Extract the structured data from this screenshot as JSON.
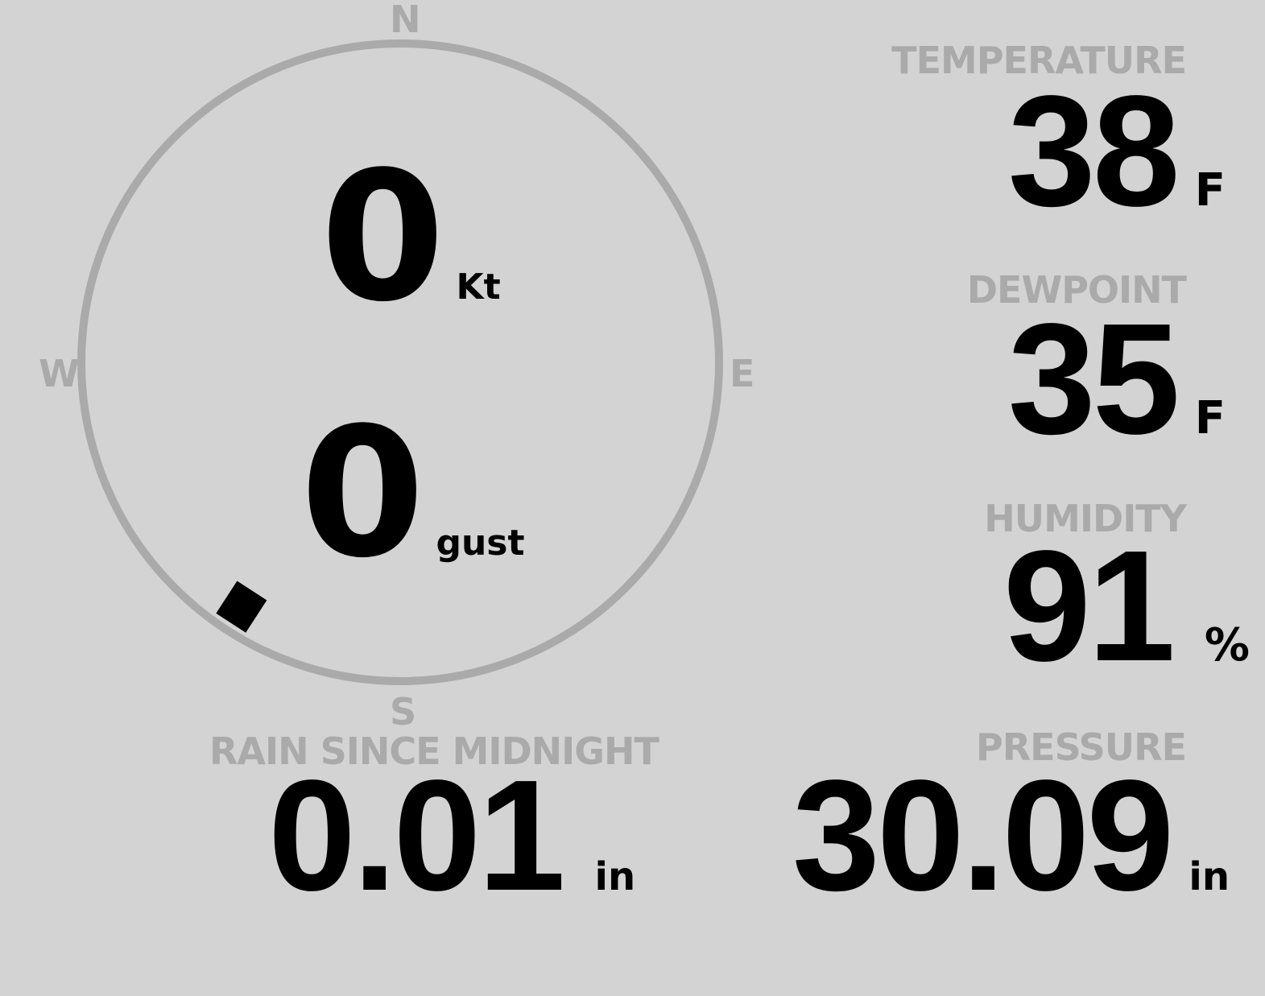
{
  "compass": {
    "north": "N",
    "south": "S",
    "east": "E",
    "west": "W",
    "direction_deg": 213,
    "ring_color": "#aaaaaa",
    "marker_color": "#000000"
  },
  "wind": {
    "speed": "0",
    "speed_unit": "Kt",
    "gust": "0",
    "gust_unit": "gust"
  },
  "temperature": {
    "label": "TEMPERATURE",
    "value": "38",
    "unit": "F"
  },
  "dewpoint": {
    "label": "DEWPOINT",
    "value": "35",
    "unit": "F"
  },
  "humidity": {
    "label": "HUMIDITY",
    "value": "91",
    "unit": "%"
  },
  "rain": {
    "label": "RAIN SINCE MIDNIGHT",
    "value": "0.01",
    "unit": "in"
  },
  "pressure": {
    "label": "PRESSURE",
    "value": "30.09",
    "unit": "in"
  },
  "colors": {
    "background": "#d3d3d3",
    "label": "#aaaaaa",
    "value": "#000000"
  }
}
